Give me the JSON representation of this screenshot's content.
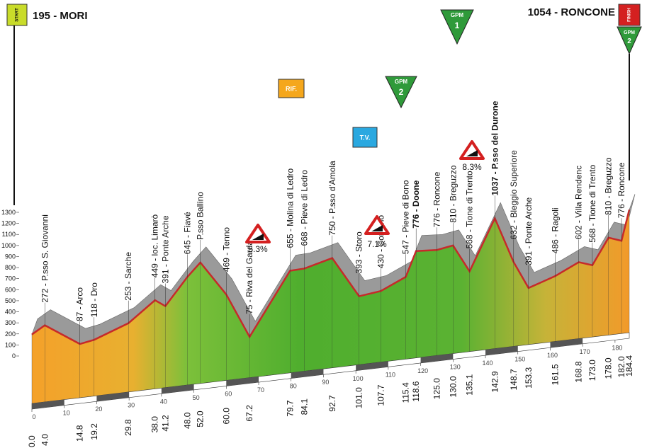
{
  "chart_data": {
    "type": "area",
    "start": {
      "badge": "START",
      "title": "195 - MORI"
    },
    "finish": {
      "badge": "FINISH",
      "title": "1054 - RONCONE"
    },
    "x": [
      0,
      4,
      14.8,
      19.2,
      29.8,
      38,
      41.2,
      48,
      52,
      60,
      67.2,
      79.7,
      84.1,
      92.7,
      101,
      107.7,
      115.4,
      118.6,
      125,
      130,
      135.1,
      142.9,
      148.7,
      153.3,
      161.5,
      168.8,
      173,
      178,
      182,
      184.4
    ],
    "x_labels": [
      "0.0",
      "4.0",
      "14.8",
      "19.2",
      "29.8",
      "38.0",
      "41.2",
      "48.0",
      "52.0",
      "60.0",
      "67.2",
      "79.7",
      "84.1",
      "92.7",
      "101.0",
      "107.7",
      "115.4",
      "118.6",
      "125.0",
      "130.0",
      "135.1",
      "142.9",
      "148.7",
      "153.3",
      "161.5",
      "168.8",
      "173.0",
      "178.0",
      "182.0",
      "184.4"
    ],
    "values": [
      195,
      272,
      87,
      118,
      253,
      449,
      391,
      645,
      770,
      469,
      75,
      655,
      668,
      750,
      393,
      430,
      547,
      776,
      776,
      810,
      568,
      1037,
      632,
      391,
      486,
      602,
      568,
      810,
      776,
      1054
    ],
    "point_labels": [
      null,
      "272 - P.sso S. Giovanni",
      "87 - Arco",
      "118 - Dro",
      "253 - Sarche",
      "449 - loc. Limarò",
      "391 - Ponte Arche",
      "645 - Fiavé",
      "P.sso Ballino",
      "469 - Tenno",
      "75 - Riva del Garda",
      "655 - Molina di Ledro",
      "668 - Pieve di Ledro",
      "750 - P.sso d'Amola",
      "393 - Storo",
      "430 - Condino",
      "547 - Pieve di Bono",
      "776 - Doone",
      "776 - Roncone",
      "810 - Breguzzo",
      "568 - Tione di Trento",
      "1037 - P.sso del Durone",
      "632 - Bleggio Superiore",
      "391 - Ponte Arche",
      "486 - Ragoli",
      "602 - Villa Rendenc",
      "568 - Tione di Trento",
      "810 - Breguzzo",
      "776 - Roncone",
      null
    ],
    "xlim": [
      0,
      184.4
    ],
    "xticks": [
      0,
      10,
      20,
      30,
      40,
      50,
      60,
      70,
      80,
      90,
      100,
      110,
      120,
      130,
      140,
      150,
      160,
      170,
      180
    ],
    "ylim": [
      0,
      1300
    ],
    "yticks": [
      0,
      100,
      200,
      300,
      400,
      500,
      600,
      700,
      800,
      900,
      1000,
      1100,
      1200,
      1300
    ],
    "climbs": [
      {
        "badge": "GPM",
        "category": "1"
      },
      {
        "badge": "GPM",
        "category": "2"
      },
      {
        "badge": "GPM",
        "category": "2"
      }
    ],
    "sprint": "T.V.",
    "feed": "RIF.",
    "gradients": [
      "5.3%",
      "7.1%",
      "8.3%"
    ],
    "color_top": "#c62a2a",
    "color_ridge": "#9a9a9a"
  }
}
